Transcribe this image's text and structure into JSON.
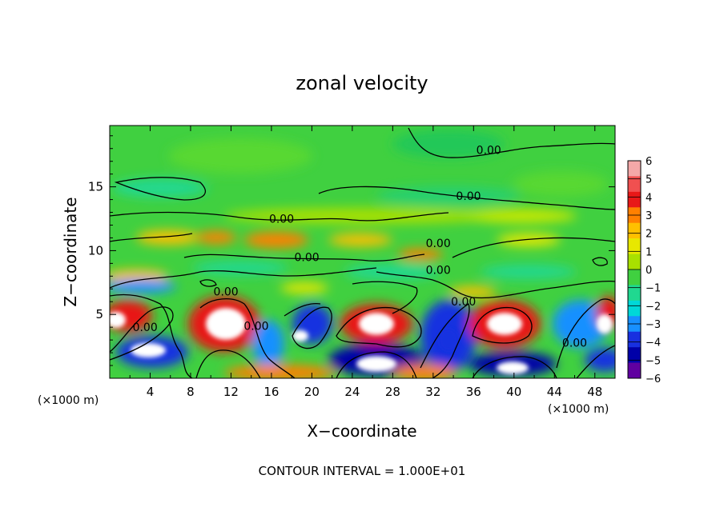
{
  "chart_data": {
    "type": "heatmap",
    "title": "zonal velocity",
    "xlabel": "X−coordinate",
    "ylabel": "Z−coordinate",
    "x_unit_left": "(×1000 m)",
    "x_unit_right": "(×1000 m)",
    "xlim": [
      0,
      50
    ],
    "ylim": [
      0,
      19.8
    ],
    "xticks": [
      4,
      8,
      12,
      16,
      20,
      24,
      28,
      32,
      36,
      40,
      44,
      48
    ],
    "yticks": [
      5,
      10,
      15
    ],
    "footer": "CONTOUR INTERVAL = 1.000E+01",
    "contour_labels": [
      {
        "text": "0.00",
        "x": 37.5,
        "z": 17.9
      },
      {
        "text": "0.00",
        "x": 35.5,
        "z": 14.3
      },
      {
        "text": "0.00",
        "x": 17.0,
        "z": 12.5
      },
      {
        "text": "0.00",
        "x": 19.5,
        "z": 9.5
      },
      {
        "text": "0.00",
        "x": 32.5,
        "z": 10.6
      },
      {
        "text": "0.00",
        "x": 32.5,
        "z": 8.5
      },
      {
        "text": "0.00",
        "x": 11.5,
        "z": 6.8
      },
      {
        "text": "0.00",
        "x": 35.0,
        "z": 6.0
      },
      {
        "text": "0.00",
        "x": 14.5,
        "z": 4.1
      },
      {
        "text": "0.00",
        "x": 3.5,
        "z": 4.0
      },
      {
        "text": "0.00",
        "x": 46.0,
        "z": 2.8
      }
    ],
    "colorbar": {
      "ticks": [
        "6",
        "5",
        "4",
        "3",
        "2",
        "1",
        "0",
        "−1",
        "−2",
        "−3",
        "−4",
        "−5",
        "−6"
      ],
      "colors": [
        "#f4a8a8",
        "#f05050",
        "#e81818",
        "#ff8000",
        "#ffc000",
        "#e8e800",
        "#a8e000",
        "#40d040",
        "#20d890",
        "#00d8d8",
        "#1890ff",
        "#1830e0",
        "#0000a8",
        "#6000a0"
      ]
    }
  }
}
